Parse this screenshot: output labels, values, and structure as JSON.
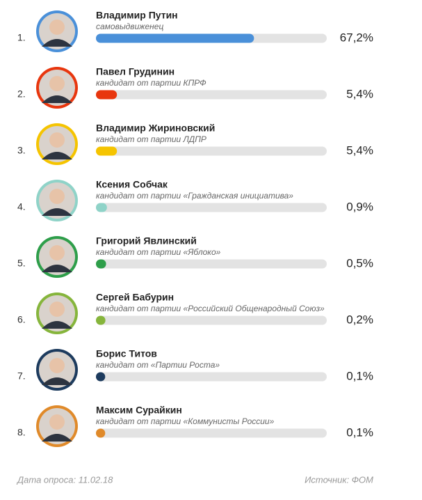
{
  "chart_data": {
    "type": "bar",
    "ranks": [
      "1.",
      "2.",
      "3.",
      "4.",
      "5.",
      "6.",
      "7.",
      "8."
    ],
    "categories": [
      "Владимир Путин",
      "Павел Грудинин",
      "Владимир Жириновский",
      "Ксения Собчак",
      "Григорий Явлинский",
      "Сергей Бабурин",
      "Борис Титов",
      "Максим Сурайкин"
    ],
    "subtitles": [
      "самовыдвиженец",
      "кандидат от партии КПРФ",
      "кандидат от партии ЛДПР",
      "кандидат от партии «Гражданская инициатива»",
      "кандидат от партии «Яблоко»",
      "кандидат от партии «Российский Общенародный Союз»",
      "кандидат от «Партии Роста»",
      "кандидат от партии «Коммунисты России»"
    ],
    "values": [
      67.2,
      5.4,
      5.4,
      0.9,
      0.5,
      0.2,
      0.1,
      0.1
    ],
    "value_labels": [
      "67,2%",
      "5,4%",
      "5,4%",
      "0,9%",
      "0,5%",
      "0,2%",
      "0,1%",
      "0,1%"
    ],
    "colors": [
      "#4a90d9",
      "#e8360e",
      "#f5c400",
      "#8fd3c8",
      "#2e9e4a",
      "#86b53c",
      "#1d3b5e",
      "#e08a2a"
    ],
    "xlim": [
      0,
      100
    ],
    "footer_left": "Дата опроса: 11.02.18",
    "footer_right": "Источник: ФОМ"
  }
}
